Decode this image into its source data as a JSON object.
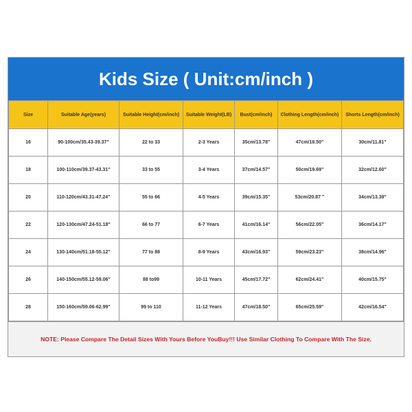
{
  "header": {
    "title": "Kids Size ( Unit:cm/inch )"
  },
  "table": {
    "columns": [
      "Size",
      "Suitable Age(years)",
      "Suitable Height(cm/inch)",
      "Suitable Weight(LB)",
      "Bust(cm/inch)",
      "Clothing Length(cm/inch)",
      "Shorts Length(cm/inch)"
    ],
    "rows": [
      [
        "16",
        "90-100cm/35.43-39.37\"",
        "22 to 33",
        "2-3 Years",
        "35cm/13.78\"",
        "47cm/18.50\"",
        "30cm/11.81\""
      ],
      [
        "18",
        "100-110cm/39.37-43.31\"",
        "33 to 55",
        "3-4 Years",
        "37cm/14.57\"",
        "50cm/19.69\"",
        "32cm/12.60\""
      ],
      [
        "20",
        "110-120cm/43.31-47.24\"",
        "55 to 66",
        "4-5 Years",
        "39cm/15.35\"",
        "53cm/20.87 \"",
        "34cm/13.39\""
      ],
      [
        "22",
        "120-130cm/47.24-51.18\"",
        "66 to 77",
        "6-7 Years",
        "41cm/16.14\"",
        "56cm/22.05\"",
        "36cm/14.17\""
      ],
      [
        "24",
        "130-140cm/51.18-55.12\"",
        "77 to 88",
        "8-9 Years",
        "43cm/16.93\"",
        "59cm/23.23\"",
        "38cm/14.96\""
      ],
      [
        "26",
        "140-150cm/55.12-59.06\"",
        "88 to99",
        "10-11 Years",
        "45cm/17.72\"",
        "62cm/24.41\"",
        "40cm/15.75\""
      ],
      [
        "28",
        "150-160cm/59.06-62.99\"",
        "99 to 110",
        "11-12 Years",
        "47cm/18.50\"",
        "65cm/25.59\"",
        "42cm/16.54\""
      ]
    ]
  },
  "note": "NOTE: Please Compare The Detail Sizes With Yours Before YouBuy!!! Use Similar Clothing To Compare With The Size."
}
